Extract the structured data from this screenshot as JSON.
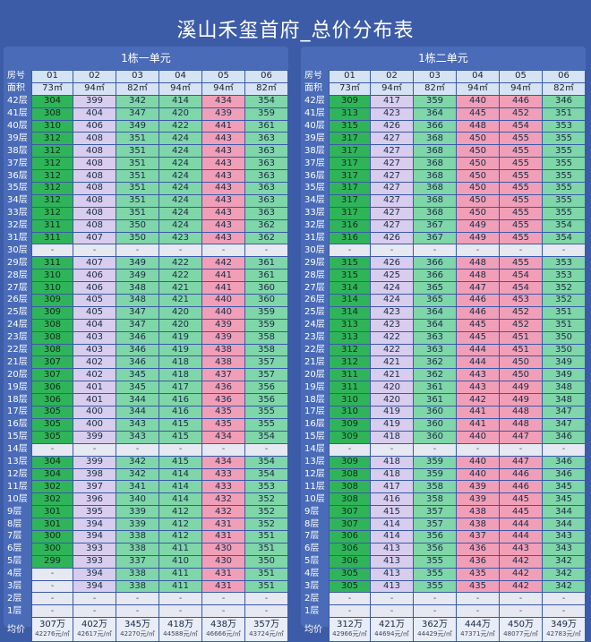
{
  "title": "溪山禾玺首府_总价分布表",
  "legend": {
    "units": [
      "01",
      "02",
      "03",
      "04",
      "05",
      "06"
    ]
  },
  "colors": {
    "background": "#3d5ca8",
    "dark_green": "#2fb45a",
    "light_green": "#7fd6a8",
    "lavender": "#d8cdee",
    "pink": "#f19fb8",
    "grey": "#e6e8f2"
  },
  "header_labels": {
    "room": "房号",
    "area": "面积",
    "avg": "均价"
  },
  "floors": [
    "42层",
    "41层",
    "40层",
    "39层",
    "38层",
    "37层",
    "36层",
    "35层",
    "34层",
    "33层",
    "32层",
    "31层",
    "30层",
    "29层",
    "28层",
    "27层",
    "26层",
    "25层",
    "24层",
    "23层",
    "22层",
    "21层",
    "20层",
    "19层",
    "18层",
    "17层",
    "16层",
    "15层",
    "14层",
    "13层",
    "12层",
    "11层",
    "10层",
    "9层",
    "8层",
    "7层",
    "6层",
    "5层",
    "4层",
    "3层",
    "2层",
    "1层"
  ],
  "unit1": {
    "name": "1栋一单元",
    "areas": [
      "73㎡",
      "94㎡",
      "82㎡",
      "94㎡",
      "94㎡",
      "82㎡"
    ],
    "rows": [
      [
        "304",
        "399",
        "342",
        "414",
        "434",
        "354"
      ],
      [
        "308",
        "404",
        "347",
        "420",
        "439",
        "359"
      ],
      [
        "310",
        "406",
        "349",
        "422",
        "441",
        "361"
      ],
      [
        "312",
        "408",
        "351",
        "424",
        "443",
        "363"
      ],
      [
        "312",
        "408",
        "351",
        "424",
        "443",
        "363"
      ],
      [
        "312",
        "408",
        "351",
        "424",
        "443",
        "363"
      ],
      [
        "312",
        "408",
        "351",
        "424",
        "443",
        "363"
      ],
      [
        "312",
        "408",
        "351",
        "424",
        "443",
        "363"
      ],
      [
        "312",
        "408",
        "351",
        "424",
        "443",
        "363"
      ],
      [
        "312",
        "408",
        "351",
        "424",
        "443",
        "363"
      ],
      [
        "311",
        "408",
        "350",
        "424",
        "443",
        "362"
      ],
      [
        "311",
        "407",
        "350",
        "423",
        "443",
        "362"
      ],
      [
        "-",
        "-",
        "-",
        "-",
        "-",
        "-"
      ],
      [
        "311",
        "407",
        "349",
        "422",
        "442",
        "361"
      ],
      [
        "310",
        "406",
        "349",
        "422",
        "441",
        "361"
      ],
      [
        "310",
        "406",
        "348",
        "421",
        "441",
        "360"
      ],
      [
        "309",
        "405",
        "348",
        "421",
        "440",
        "360"
      ],
      [
        "309",
        "405",
        "347",
        "420",
        "440",
        "359"
      ],
      [
        "308",
        "404",
        "347",
        "420",
        "439",
        "359"
      ],
      [
        "308",
        "403",
        "346",
        "419",
        "439",
        "358"
      ],
      [
        "308",
        "403",
        "346",
        "419",
        "438",
        "358"
      ],
      [
        "307",
        "402",
        "346",
        "418",
        "438",
        "357"
      ],
      [
        "307",
        "402",
        "345",
        "418",
        "437",
        "357"
      ],
      [
        "306",
        "401",
        "345",
        "417",
        "436",
        "356"
      ],
      [
        "306",
        "401",
        "344",
        "416",
        "436",
        "356"
      ],
      [
        "305",
        "400",
        "344",
        "416",
        "435",
        "355"
      ],
      [
        "305",
        "400",
        "343",
        "415",
        "435",
        "355"
      ],
      [
        "305",
        "399",
        "343",
        "415",
        "434",
        "354"
      ],
      [
        "-",
        "-",
        "-",
        "-",
        "-",
        "-"
      ],
      [
        "304",
        "399",
        "342",
        "415",
        "434",
        "354"
      ],
      [
        "304",
        "398",
        "342",
        "414",
        "433",
        "354"
      ],
      [
        "302",
        "397",
        "341",
        "414",
        "433",
        "353"
      ],
      [
        "302",
        "396",
        "340",
        "414",
        "432",
        "352"
      ],
      [
        "301",
        "395",
        "339",
        "412",
        "432",
        "352"
      ],
      [
        "301",
        "394",
        "339",
        "412",
        "431",
        "352"
      ],
      [
        "300",
        "394",
        "338",
        "412",
        "431",
        "351"
      ],
      [
        "300",
        "393",
        "338",
        "411",
        "430",
        "351"
      ],
      [
        "299",
        "393",
        "337",
        "410",
        "430",
        "350"
      ],
      [
        "-",
        "394",
        "338",
        "411",
        "431",
        "351"
      ],
      [
        "-",
        "394",
        "338",
        "411",
        "431",
        "351"
      ],
      [
        "-",
        "-",
        "-",
        "-",
        "-",
        "-"
      ],
      [
        "-",
        "-",
        "-",
        "-",
        "-",
        "-"
      ]
    ],
    "avg": [
      {
        "price": "307万",
        "unit": "42276元/㎡"
      },
      {
        "price": "402万",
        "unit": "42617元/㎡"
      },
      {
        "price": "345万",
        "unit": "42270元/㎡"
      },
      {
        "price": "418万",
        "unit": "44588元/㎡"
      },
      {
        "price": "438万",
        "unit": "46666元/㎡"
      },
      {
        "price": "357万",
        "unit": "43724元/㎡"
      }
    ]
  },
  "unit2": {
    "name": "1栋二单元",
    "areas": [
      "73㎡",
      "94㎡",
      "82㎡",
      "94㎡",
      "94㎡",
      "82㎡"
    ],
    "rows": [
      [
        "309",
        "417",
        "359",
        "440",
        "446",
        "346"
      ],
      [
        "313",
        "423",
        "364",
        "445",
        "452",
        "351"
      ],
      [
        "315",
        "426",
        "366",
        "448",
        "454",
        "353"
      ],
      [
        "317",
        "427",
        "368",
        "450",
        "455",
        "355"
      ],
      [
        "317",
        "427",
        "368",
        "450",
        "455",
        "355"
      ],
      [
        "317",
        "427",
        "368",
        "450",
        "455",
        "355"
      ],
      [
        "317",
        "427",
        "368",
        "450",
        "455",
        "355"
      ],
      [
        "317",
        "427",
        "368",
        "450",
        "455",
        "355"
      ],
      [
        "317",
        "427",
        "368",
        "450",
        "455",
        "355"
      ],
      [
        "317",
        "427",
        "368",
        "450",
        "455",
        "355"
      ],
      [
        "316",
        "427",
        "367",
        "449",
        "455",
        "354"
      ],
      [
        "316",
        "426",
        "367",
        "449",
        "455",
        "354"
      ],
      [
        "-",
        "-",
        "-",
        "-",
        "-",
        "-"
      ],
      [
        "315",
        "426",
        "366",
        "448",
        "455",
        "353"
      ],
      [
        "315",
        "425",
        "366",
        "448",
        "454",
        "353"
      ],
      [
        "314",
        "424",
        "365",
        "447",
        "454",
        "352"
      ],
      [
        "314",
        "424",
        "365",
        "446",
        "453",
        "352"
      ],
      [
        "314",
        "423",
        "364",
        "446",
        "452",
        "351"
      ],
      [
        "313",
        "423",
        "364",
        "445",
        "452",
        "351"
      ],
      [
        "313",
        "422",
        "363",
        "445",
        "451",
        "350"
      ],
      [
        "312",
        "422",
        "363",
        "444",
        "451",
        "350"
      ],
      [
        "312",
        "421",
        "362",
        "444",
        "450",
        "349"
      ],
      [
        "311",
        "421",
        "362",
        "443",
        "450",
        "349"
      ],
      [
        "311",
        "420",
        "361",
        "443",
        "449",
        "348"
      ],
      [
        "310",
        "420",
        "361",
        "442",
        "449",
        "348"
      ],
      [
        "310",
        "419",
        "360",
        "441",
        "448",
        "347"
      ],
      [
        "309",
        "419",
        "360",
        "441",
        "448",
        "347"
      ],
      [
        "309",
        "418",
        "360",
        "440",
        "447",
        "346"
      ],
      [
        "-",
        "-",
        "-",
        "-",
        "-",
        "-"
      ],
      [
        "309",
        "418",
        "359",
        "440",
        "447",
        "346"
      ],
      [
        "308",
        "418",
        "359",
        "440",
        "446",
        "346"
      ],
      [
        "308",
        "417",
        "358",
        "439",
        "446",
        "345"
      ],
      [
        "308",
        "416",
        "358",
        "439",
        "445",
        "345"
      ],
      [
        "307",
        "415",
        "357",
        "438",
        "445",
        "344"
      ],
      [
        "307",
        "414",
        "357",
        "438",
        "444",
        "344"
      ],
      [
        "306",
        "414",
        "356",
        "437",
        "444",
        "343"
      ],
      [
        "306",
        "413",
        "356",
        "436",
        "443",
        "343"
      ],
      [
        "306",
        "413",
        "355",
        "436",
        "442",
        "342"
      ],
      [
        "305",
        "413",
        "355",
        "435",
        "442",
        "342"
      ],
      [
        "305",
        "413",
        "355",
        "435",
        "442",
        "342"
      ],
      [
        "-",
        "-",
        "-",
        "-",
        "-",
        "-"
      ],
      [
        "-",
        "-",
        "-",
        "-",
        "-",
        "-"
      ]
    ],
    "avg": [
      {
        "price": "312万",
        "unit": "42966元/㎡"
      },
      {
        "price": "421万",
        "unit": "44694元/㎡"
      },
      {
        "price": "362万",
        "unit": "44429元/㎡"
      },
      {
        "price": "444万",
        "unit": "47371元/㎡"
      },
      {
        "price": "450万",
        "unit": "48077元/㎡"
      },
      {
        "price": "349万",
        "unit": "42783元/㎡"
      }
    ]
  }
}
